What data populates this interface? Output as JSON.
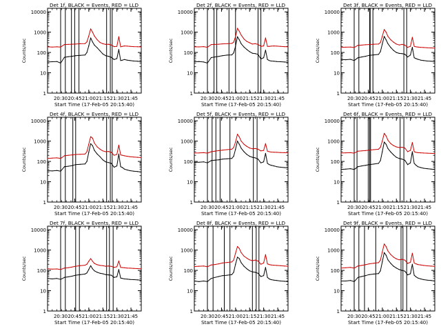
{
  "figure": {
    "subplot_titles": [
      "Det 1f, BLACK = Events, RED = LLD",
      "Det 2f, BLACK = Events, RED = LLD",
      "Det 3f, BLACK = Events, RED = LLD",
      "Det 4f, BLACK = Events, RED = LLD",
      "Det 5f, BLACK = Events, RED = LLD",
      "Det 6f, BLACK = Events, RED = LLD",
      "Det 7f, BLACK = Events, RED = LLD",
      "Det 8f, BLACK = Events, RED = LLD",
      "Det 9f, BLACK = Events, RED = LLD"
    ],
    "xlabel": "Start Time (17-Feb-05 20:15:40)",
    "ylabel": "Counts/sec",
    "xticklabels": [
      "20:30",
      "20:45",
      "21:00",
      "21:15",
      "21:30",
      "21:45"
    ],
    "yticklabels": [
      "1",
      "10",
      "100",
      "1000",
      "10000"
    ],
    "colors": {
      "events": "#000000",
      "lld": "#cc0000",
      "frame": "#000000"
    }
  },
  "chart_data": {
    "type": "line",
    "layout": "3x3 grid",
    "yscale": "log",
    "ylim": [
      1,
      15000
    ],
    "xlim_minutes_after_start": [
      0,
      100
    ],
    "x_minutes_after_start": [
      0,
      5,
      10,
      14,
      18,
      22,
      26,
      30,
      35,
      40,
      42,
      44,
      46,
      48,
      50,
      53,
      56,
      59,
      62,
      65,
      68,
      71,
      74,
      76,
      78,
      80,
      82,
      85,
      88,
      92,
      96,
      100
    ],
    "panels": [
      {
        "detector": "1f",
        "vlines_minutes": [
          0,
          14,
          19,
          25.5,
          29,
          33.5,
          63,
          67,
          69
        ],
        "series": [
          {
            "name": "Events",
            "values": [
              34,
              35,
              36,
              30,
              58,
              62,
              65,
              70,
              72,
              75,
              100,
              210,
              520,
              330,
              230,
              170,
              120,
              85,
              70,
              65,
              58,
              45,
              50,
              140,
              40,
              42,
              45,
              42,
              40,
              38,
              37,
              35
            ]
          },
          {
            "name": "LLD",
            "values": [
              190,
              185,
              190,
              185,
              245,
              250,
              255,
              260,
              270,
              275,
              330,
              650,
              1450,
              1000,
              650,
              420,
              310,
              270,
              250,
              255,
              230,
              195,
              200,
              600,
              190,
              200,
              210,
              205,
              200,
              195,
              192,
              188
            ]
          }
        ]
      },
      {
        "detector": "2f",
        "vlines_minutes": [
          0,
          14,
          21,
          24,
          37,
          44,
          68,
          71
        ],
        "series": [
          {
            "name": "Events",
            "values": [
              35,
              36,
              34,
              30,
              56,
              60,
              64,
              70,
              74,
              76,
              95,
              200,
              600,
              420,
              270,
              185,
              140,
              110,
              92,
              88,
              80,
              48,
              55,
              130,
              45,
              40,
              38,
              37,
              36,
              35,
              34,
              33
            ]
          },
          {
            "name": "LLD",
            "values": [
              190,
              188,
              195,
              180,
              245,
              250,
              255,
              265,
              270,
              280,
              320,
              600,
              1550,
              1100,
              720,
              460,
              350,
              300,
              260,
              270,
              250,
              200,
              210,
              520,
              200,
              200,
              205,
              210,
              205,
              200,
              195,
              190
            ]
          }
        ]
      },
      {
        "detector": "3f",
        "vlines_minutes": [
          0,
          14,
          19,
          30.5,
          31,
          34,
          67,
          70
        ],
        "series": [
          {
            "name": "Events",
            "values": [
              45,
              44,
              46,
              40,
              55,
              60,
              65,
              72,
              76,
              80,
              110,
              260,
              620,
              420,
              270,
              175,
              125,
              100,
              90,
              88,
              82,
              60,
              75,
              180,
              55,
              50,
              46,
              42,
              40,
              38,
              37,
              36
            ]
          },
          {
            "name": "LLD",
            "values": [
              180,
              182,
              185,
              175,
              225,
              230,
              240,
              245,
              255,
              260,
              310,
              620,
              1350,
              1000,
              620,
              420,
              320,
              260,
              235,
              250,
              230,
              180,
              200,
              560,
              200,
              190,
              185,
              180,
              175,
              170,
              168,
              165
            ]
          }
        ]
      },
      {
        "detector": "4f",
        "vlines_minutes": [
          0,
          14,
          19,
          27,
          30,
          63,
          67,
          69
        ],
        "series": [
          {
            "name": "Events",
            "values": [
              35,
              34,
              36,
              33,
              55,
              58,
              62,
              70,
              72,
              75,
              100,
              280,
              750,
              600,
              350,
              230,
              170,
              120,
              95,
              88,
              80,
              52,
              60,
              230,
              55,
              50,
              42,
              38,
              35,
              33,
              32,
              30
            ]
          },
          {
            "name": "LLD",
            "values": [
              140,
              145,
              150,
              140,
              190,
              200,
              210,
              220,
              225,
              230,
              300,
              700,
              1650,
              1400,
              800,
              520,
              400,
              330,
              300,
              310,
              280,
              200,
              220,
              630,
              210,
              200,
              190,
              180,
              170,
              165,
              160,
              155
            ]
          }
        ]
      },
      {
        "detector": "5f",
        "vlines_minutes": [
          0,
          14,
          19,
          23,
          27.5,
          38,
          63,
          67
        ],
        "series": [
          {
            "name": "Events",
            "values": [
              90,
              92,
              95,
              85,
              110,
              115,
              120,
              130,
              135,
              140,
              180,
              400,
              1000,
              700,
              450,
              300,
              220,
              180,
              160,
              150,
              130,
              85,
              95,
              250,
              80,
              70,
              65,
              60,
              55,
              52,
              50,
              48
            ]
          },
          {
            "name": "LLD",
            "values": [
              260,
              262,
              270,
              255,
              300,
              320,
              340,
              360,
              380,
              400,
              480,
              900,
              2200,
              1600,
              1000,
              700,
              550,
              460,
              420,
              430,
              400,
              330,
              350,
              750,
              320,
              300,
              290,
              285,
              280,
              275,
              270,
              265
            ]
          }
        ]
      },
      {
        "detector": "6f",
        "vlines_minutes": [
          0,
          14,
          17,
          29,
          30.5,
          31.5,
          63,
          67
        ],
        "series": [
          {
            "name": "Events",
            "values": [
              40,
              42,
              44,
              40,
              55,
              60,
              64,
              70,
              74,
              80,
              110,
              300,
              900,
              700,
              430,
              290,
              210,
              160,
              140,
              130,
              115,
              70,
              85,
              300,
              80,
              65,
              55,
              50,
              46,
              44,
              42,
              40
            ]
          },
          {
            "name": "LLD",
            "values": [
              260,
              265,
              270,
              255,
              320,
              330,
              340,
              360,
              380,
              400,
              500,
              1000,
              2400,
              1800,
              1100,
              750,
              600,
              520,
              480,
              500,
              460,
              300,
              350,
              850,
              300,
              280,
              270,
              265,
              260,
              255,
              250,
              245
            ]
          }
        ]
      },
      {
        "detector": "7f",
        "vlines_minutes": [
          0,
          14,
          19,
          30,
          34,
          63,
          66,
          70
        ],
        "series": [
          {
            "name": "Events",
            "values": [
              40,
              38,
              40,
              36,
              45,
              48,
              52,
              58,
              62,
              66,
              75,
              110,
              170,
              120,
              95,
              80,
              72,
              68,
              62,
              60,
              58,
              45,
              48,
              110,
              42,
              40,
              38,
              37,
              36,
              35,
              34,
              33
            ]
          },
          {
            "name": "LLD",
            "values": [
              120,
              115,
              118,
              110,
              130,
              135,
              145,
              160,
              170,
              180,
              200,
              280,
              380,
              280,
              220,
              190,
              175,
              170,
              160,
              165,
              158,
              140,
              150,
              290,
              140,
              138,
              135,
              130,
              128,
              125,
              122,
              120
            ]
          }
        ]
      },
      {
        "detector": "8f",
        "vlines_minutes": [
          0,
          14,
          20,
          32,
          38,
          62,
          66,
          69
        ],
        "series": [
          {
            "name": "Events",
            "values": [
              30,
              28,
              30,
              28,
              40,
              45,
              50,
              55,
              58,
              62,
              80,
              200,
              450,
              380,
              240,
              160,
              120,
              95,
              85,
              80,
              72,
              50,
              55,
              140,
              45,
              38,
              35,
              33,
              32,
              30,
              29,
              28
            ]
          },
          {
            "name": "LLD",
            "values": [
              155,
              160,
              165,
              150,
              185,
              195,
              210,
              230,
              245,
              260,
              320,
              700,
              1500,
              1200,
              750,
              500,
              400,
              330,
              300,
              320,
              290,
              200,
              230,
              600,
              210,
              195,
              185,
              180,
              175,
              170,
              165,
              160
            ]
          }
        ]
      },
      {
        "detector": "9f",
        "vlines_minutes": [
          0,
          14,
          19,
          25,
          37,
          64,
          66,
          70
        ],
        "series": [
          {
            "name": "Events",
            "values": [
              30,
              30,
              32,
              28,
              45,
              50,
              55,
              62,
              66,
              70,
              95,
              260,
              750,
              560,
              330,
              220,
              160,
              130,
              110,
              100,
              92,
              60,
              68,
              200,
              58,
              48,
              42,
              38,
              35,
              33,
              32,
              30
            ]
          },
          {
            "name": "LLD",
            "values": [
              130,
              135,
              140,
              128,
              165,
              175,
              190,
              210,
              225,
              240,
              320,
              800,
              2000,
              1500,
              900,
              600,
              450,
              370,
              330,
              350,
              320,
              220,
              250,
              700,
              230,
              210,
              195,
              185,
              175,
              168,
              162,
              158
            ]
          }
        ]
      }
    ]
  }
}
